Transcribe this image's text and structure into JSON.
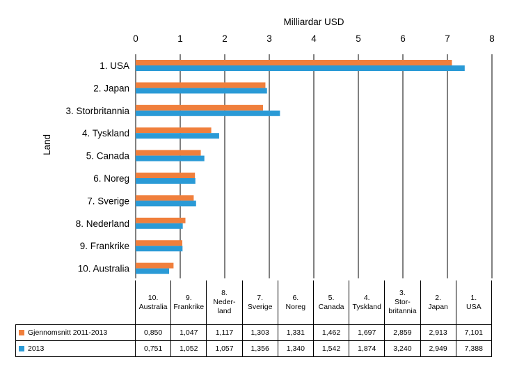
{
  "chart_data": {
    "type": "bar",
    "orientation": "horizontal",
    "title": "Milliardar USD",
    "xlabel": "Milliardar USD",
    "ylabel": "Land",
    "xlim": [
      0,
      8
    ],
    "xticks": [
      "0",
      "1",
      "2",
      "3",
      "4",
      "5",
      "6",
      "7",
      "8"
    ],
    "categories": [
      "1. USA",
      "2. Japan",
      "3. Storbritannia",
      "4. Tyskland",
      "5. Canada",
      "6. Noreg",
      "7. Sverige",
      "8. Nederland",
      "9. Frankrike",
      "10. Australia"
    ],
    "series": [
      {
        "name": "Gjennomsnitt 2011-2013",
        "color": "#f07f3c",
        "values": [
          7.101,
          2.913,
          2.859,
          1.697,
          1.462,
          1.331,
          1.303,
          1.117,
          1.047,
          0.85
        ]
      },
      {
        "name": "2013",
        "color": "#2a9ad6",
        "values": [
          7.388,
          2.949,
          3.24,
          1.874,
          1.542,
          1.34,
          1.356,
          1.057,
          1.052,
          0.751
        ]
      }
    ],
    "legend": "table-bottom"
  },
  "table": {
    "columns": [
      [
        "10.",
        "Australia"
      ],
      [
        "9.",
        "Frankrike"
      ],
      [
        "8.",
        "Neder-",
        "land"
      ],
      [
        "7.",
        "Sverige"
      ],
      [
        "6.",
        "Noreg"
      ],
      [
        "5.",
        "Canada"
      ],
      [
        "4.",
        "Tyskland"
      ],
      [
        "3.",
        "Stor-",
        "britannia"
      ],
      [
        "2.",
        "Japan"
      ],
      [
        "1.",
        "USA"
      ]
    ],
    "rows": [
      {
        "label": "Gjennomsnitt 2011-2013",
        "color": "#f07f3c",
        "values": [
          "0,850",
          "1,047",
          "1,117",
          "1,303",
          "1,331",
          "1,462",
          "1,697",
          "2,859",
          "2,913",
          "7,101"
        ]
      },
      {
        "label": "2013",
        "color": "#2a9ad6",
        "values": [
          "0,751",
          "1,052",
          "1,057",
          "1,356",
          "1,340",
          "1,542",
          "1,874",
          "3,240",
          "2,949",
          "7,388"
        ]
      }
    ]
  }
}
